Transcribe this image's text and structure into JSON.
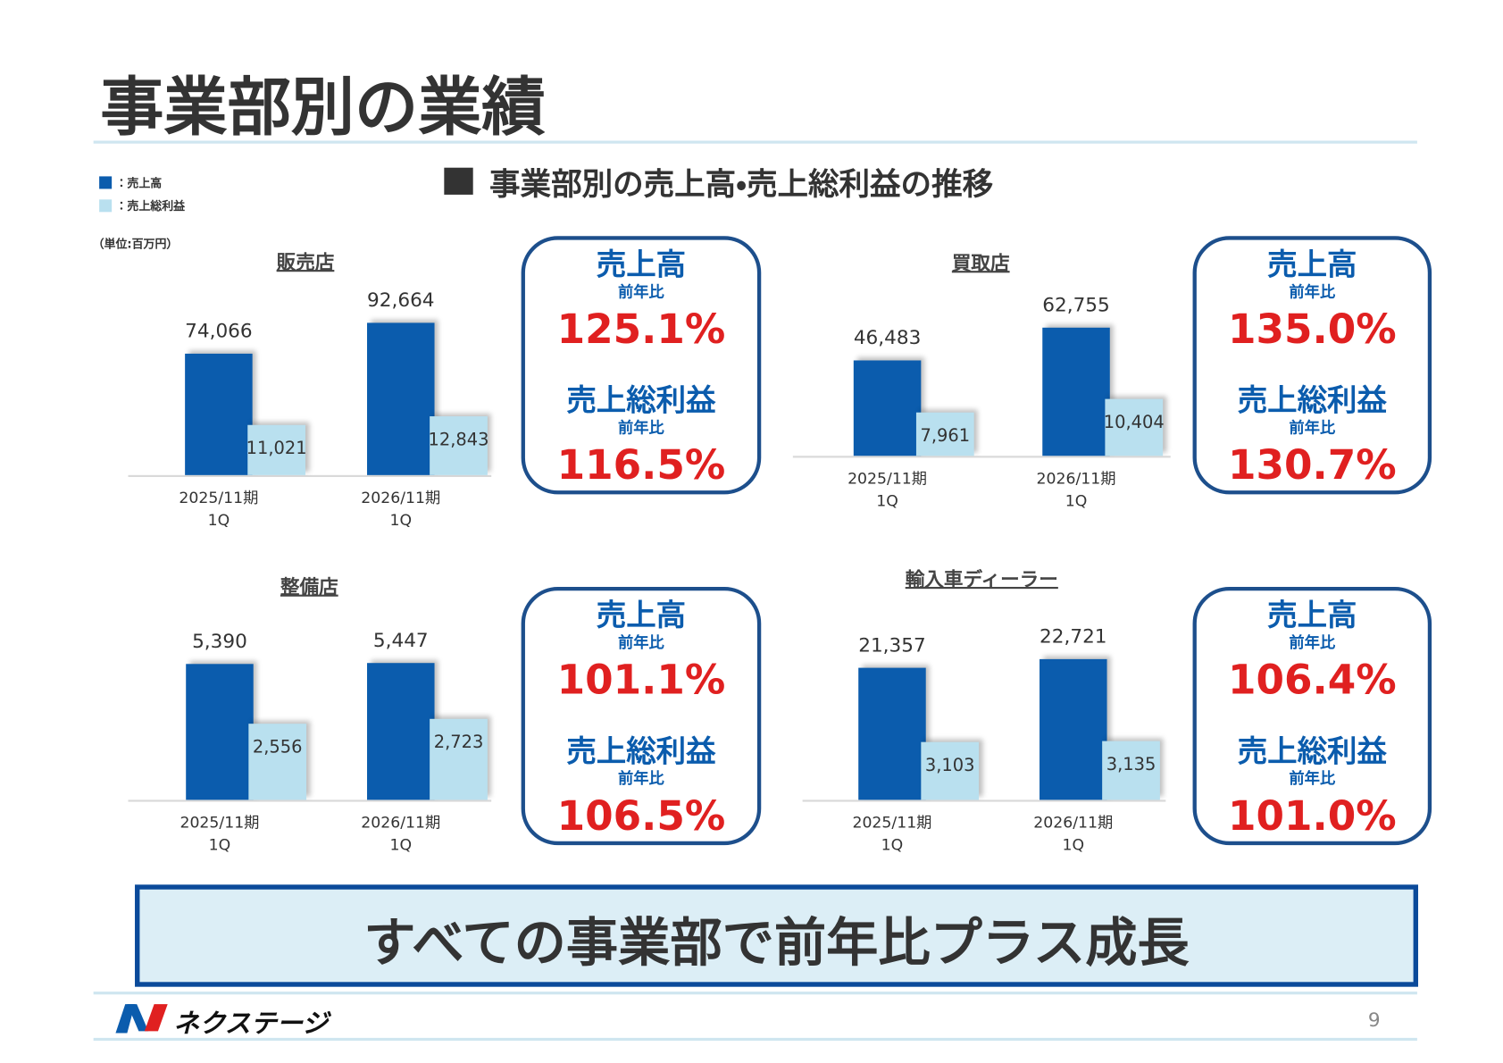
{
  "title": "事業部別の業績",
  "section_title": "事業部別の売上高・売上総利益の推移",
  "legend": [
    "：売上高",
    "：売上総利益"
  ],
  "unit": "（単位:百万円）",
  "chart_data": [
    {
      "type": "bar",
      "title": "販売店",
      "categories": [
        "2025/11期\n1Q",
        "2026/11期\n1Q"
      ],
      "series": [
        {
          "name": "売上高",
          "color": "#0b5cad",
          "values": [
            74066,
            92664
          ],
          "value_labels": [
            "74,066",
            "92,664"
          ]
        },
        {
          "name": "売上総利益",
          "color": "#b9e0ef",
          "axis": "y2",
          "values": [
            11021,
            12843
          ],
          "value_labels": [
            "11,021",
            "12,843"
          ]
        }
      ],
      "ylim": [
        0,
        100000
      ],
      "y2lim": [
        0,
        36000
      ],
      "yoy": {
        "label": "前年比",
        "values": [
          125.1,
          116.5
        ],
        "value_labels": [
          "125.1%",
          "116.5%"
        ]
      }
    },
    {
      "type": "bar",
      "title": "買取店",
      "categories": [
        "2025/11期\n1Q",
        "2026/11期\n1Q"
      ],
      "series": [
        {
          "name": "売上高",
          "color": "#0b5cad",
          "values": [
            46483,
            62755
          ],
          "value_labels": [
            "46,483",
            "62,755"
          ]
        },
        {
          "name": "売上総利益",
          "color": "#b9e0ef",
          "axis": "y2",
          "values": [
            7961,
            10404
          ],
          "value_labels": [
            "7,961",
            "10,404"
          ]
        }
      ],
      "ylim": [
        0,
        80000
      ],
      "y2lim": [
        0,
        30000
      ],
      "yoy": {
        "label": "前年比",
        "values": [
          135.0,
          130.7
        ],
        "value_labels": [
          "135.0%",
          "130.7%"
        ]
      }
    },
    {
      "type": "bar",
      "title": "整備店",
      "categories": [
        "2025/11期\n1Q",
        "2026/11期\n1Q"
      ],
      "series": [
        {
          "name": "売上高",
          "color": "#0b5cad",
          "values": [
            5390,
            5447
          ],
          "value_labels": [
            "5,390",
            "5,447"
          ]
        },
        {
          "name": "売上総利益",
          "color": "#b9e0ef",
          "axis": "y2",
          "values": [
            2556,
            2723
          ],
          "value_labels": [
            "2,556",
            "2,723"
          ]
        }
      ],
      "ylim": [
        0,
        6500
      ],
      "y2lim": [
        0,
        5500
      ],
      "yoy": {
        "label": "前年比",
        "values": [
          101.1,
          106.5
        ],
        "value_labels": [
          "101.1%",
          "106.5%"
        ]
      }
    },
    {
      "type": "bar",
      "title": "輸入車ディーラー",
      "categories": [
        "2025/11期\n1Q",
        "2026/11期\n1Q"
      ],
      "series": [
        {
          "name": "売上高",
          "color": "#0b5cad",
          "values": [
            21357,
            22721
          ],
          "value_labels": [
            "21,357",
            "22,721"
          ]
        },
        {
          "name": "売上総利益",
          "color": "#b9e0ef",
          "axis": "y2",
          "values": [
            3103,
            3135
          ],
          "value_labels": [
            "3,103",
            "3,135"
          ]
        }
      ],
      "ylim": [
        0,
        26500
      ],
      "y2lim": [
        0,
        8800
      ],
      "yoy": {
        "label": "前年比",
        "values": [
          106.4,
          101.0
        ],
        "value_labels": [
          "106.4%",
          "101.0%"
        ]
      }
    }
  ],
  "banner": "すべての事業部で前年比プラス成長",
  "footer": {
    "logo": "ネクステージ",
    "page": 9
  }
}
